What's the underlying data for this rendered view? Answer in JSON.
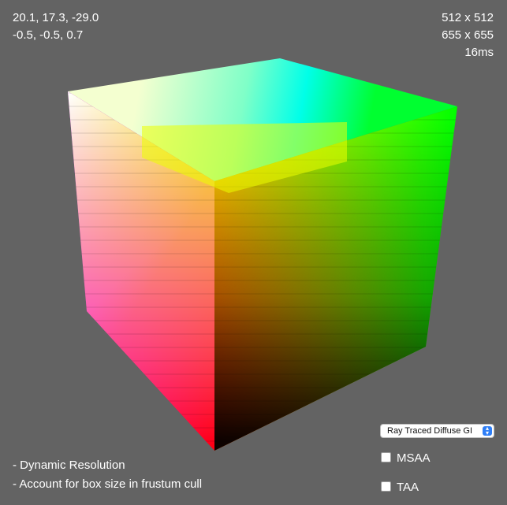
{
  "hud": {
    "camera_position": "20.1, 17.3, -29.0",
    "camera_direction": "-0.5, -0.5, 0.7",
    "render_resolution": "512 x 512",
    "window_resolution": "655 x 655",
    "frame_time": "16ms"
  },
  "notes": [
    "- Dynamic Resolution",
    "- Account for box size in frustum cull"
  ],
  "controls": {
    "render_mode": {
      "selected": "Ray Traced Diffuse GI"
    },
    "msaa": {
      "label": "MSAA",
      "checked": false
    },
    "taa": {
      "label": "TAA",
      "checked": false
    }
  },
  "scene": {
    "object": "rgb-color-cube",
    "background_color": "#636363"
  }
}
